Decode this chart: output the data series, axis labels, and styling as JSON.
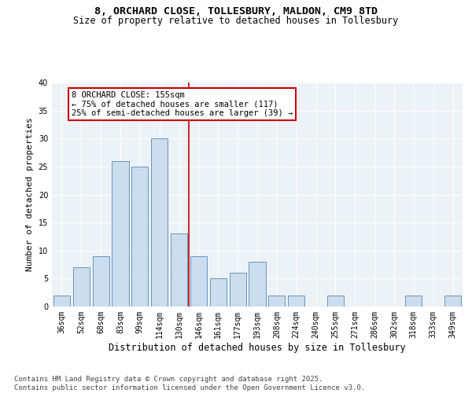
{
  "title_line1": "8, ORCHARD CLOSE, TOLLESBURY, MALDON, CM9 8TD",
  "title_line2": "Size of property relative to detached houses in Tollesbury",
  "xlabel": "Distribution of detached houses by size in Tollesbury",
  "ylabel": "Number of detached properties",
  "categories": [
    "36sqm",
    "52sqm",
    "68sqm",
    "83sqm",
    "99sqm",
    "114sqm",
    "130sqm",
    "146sqm",
    "161sqm",
    "177sqm",
    "193sqm",
    "208sqm",
    "224sqm",
    "240sqm",
    "255sqm",
    "271sqm",
    "286sqm",
    "302sqm",
    "318sqm",
    "333sqm",
    "349sqm"
  ],
  "values": [
    2,
    7,
    9,
    26,
    25,
    30,
    13,
    9,
    5,
    6,
    8,
    2,
    2,
    0,
    2,
    0,
    0,
    0,
    2,
    0,
    2
  ],
  "bar_color": "#ccdded",
  "bar_edge_color": "#5588bb",
  "reference_line_x": 6.5,
  "reference_line_color": "#cc0000",
  "annotation_text": "8 ORCHARD CLOSE: 155sqm\n← 75% of detached houses are smaller (117)\n25% of semi-detached houses are larger (39) →",
  "annotation_box_color": "#cc0000",
  "ylim": [
    0,
    40
  ],
  "yticks": [
    0,
    5,
    10,
    15,
    20,
    25,
    30,
    35,
    40
  ],
  "background_color": "#edf2f7",
  "grid_color": "#ffffff",
  "footer_text": "Contains HM Land Registry data © Crown copyright and database right 2025.\nContains public sector information licensed under the Open Government Licence v3.0.",
  "title_fontsize": 9.5,
  "subtitle_fontsize": 8.5,
  "xlabel_fontsize": 8.5,
  "ylabel_fontsize": 8,
  "tick_fontsize": 7,
  "annotation_fontsize": 7.5,
  "footer_fontsize": 6.5
}
